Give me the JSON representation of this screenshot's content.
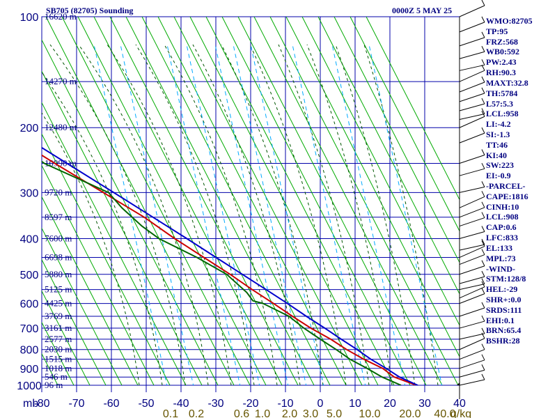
{
  "header": {
    "title": "SB705 (82705) Sounding",
    "time": "0000Z  5 MAY 25"
  },
  "indices": [
    "WMO:82705",
    "TP:95",
    "FRZ:568",
    "WB0:592",
    "PW:2.43",
    "RH:90.3",
    "MAXT:32.8",
    "TH:5784",
    "L57:5.3",
    "LCL:958",
    "LI:-4.2",
    "SI:-1.3",
    "TT:46",
    "KI:40",
    "SW:223",
    "EI:-0.9",
    "-PARCEL-",
    "CAPE:1816",
    "CINH:10",
    "LCL:908",
    "CAP:0.6",
    "LFC:833",
    "EL:133",
    "MPL:73",
    "-WIND-",
    "STM:128/8",
    "HEL:-29",
    "SHR+:0.0",
    "SRDS:111",
    "EHI:0.1",
    "BRN:65.4",
    "BSHR:28"
  ],
  "colors": {
    "axis": "#000080",
    "grid": "#0000aa",
    "dry_adiabat": "#00aa00",
    "moist_adiabat": "#005500",
    "mixing_ratio": "#00aaff",
    "temperature": "#cc0000",
    "dewpoint": "#006600",
    "parcel": "#0000cc",
    "mixing_label": "#665500"
  },
  "chart_data": {
    "type": "line",
    "title": "SB705 (82705) Sounding",
    "xlabel": "",
    "ylabel": "mb",
    "xlim": [
      -80,
      40
    ],
    "ylim": [
      1000,
      100
    ],
    "y_scale": "log",
    "pressure_ticks": [
      100,
      200,
      300,
      400,
      500,
      600,
      700,
      800,
      900,
      1000
    ],
    "temperature_ticks": [
      -80,
      -70,
      -60,
      -50,
      -40,
      -30,
      -20,
      -10,
      0,
      10,
      20,
      30,
      40
    ],
    "height_labels": [
      {
        "p": 100,
        "label": "16620 m"
      },
      {
        "p": 150,
        "label": "14270 m"
      },
      {
        "p": 200,
        "label": "12480 m"
      },
      {
        "p": 250,
        "label": "10990 m"
      },
      {
        "p": 300,
        "label": "9720 m"
      },
      {
        "p": 350,
        "label": "8597 m"
      },
      {
        "p": 400,
        "label": "7600 m"
      },
      {
        "p": 450,
        "label": "6698 m"
      },
      {
        "p": 500,
        "label": "5880 m"
      },
      {
        "p": 550,
        "label": "5125 m"
      },
      {
        "p": 600,
        "label": "4425 m"
      },
      {
        "p": 650,
        "label": "3769 m"
      },
      {
        "p": 700,
        "label": "3161 m"
      },
      {
        "p": 750,
        "label": "2577 m"
      },
      {
        "p": 800,
        "label": "2030 m"
      },
      {
        "p": 850,
        "label": "1515 m"
      },
      {
        "p": 900,
        "label": "1018 m"
      },
      {
        "p": 950,
        "label": "546 m"
      },
      {
        "p": 1000,
        "label": "96 m"
      }
    ],
    "mixing_ratio_labels": [
      "0.1",
      "0.2",
      "0.6",
      "1.0",
      "2.0",
      "3.0",
      "5.0",
      "10.0",
      "20.0",
      "40.0",
      "g/kg"
    ],
    "series": [
      {
        "role": "temperature",
        "points": [
          [
            1000,
            27.6
          ],
          [
            950,
            22.5
          ],
          [
            900,
            20.5
          ],
          [
            850,
            16.5
          ],
          [
            800,
            13.0
          ],
          [
            750,
            10.0
          ],
          [
            700,
            6.0
          ],
          [
            650,
            2.5
          ],
          [
            600,
            -1.0
          ],
          [
            550,
            -5.0
          ],
          [
            500,
            -9.0
          ],
          [
            450,
            -14.0
          ],
          [
            400,
            -19.5
          ],
          [
            350,
            -25.0
          ],
          [
            300,
            -33.0
          ],
          [
            250,
            -42.5
          ],
          [
            200,
            -53.5
          ],
          [
            150,
            -64.5
          ],
          [
            125,
            -71.0
          ],
          [
            100,
            -79.5
          ]
        ]
      },
      {
        "role": "dewpoint",
        "points": [
          [
            1000,
            23.2
          ],
          [
            950,
            19.0
          ],
          [
            900,
            16.0
          ],
          [
            850,
            12.5
          ],
          [
            800,
            10.0
          ],
          [
            750,
            7.0
          ],
          [
            700,
            4.0
          ],
          [
            650,
            1.5
          ],
          [
            600,
            -4.0
          ],
          [
            590,
            -6.5
          ],
          [
            560,
            -7.0
          ],
          [
            500,
            -10.0
          ],
          [
            450,
            -16.0
          ],
          [
            400,
            -24.0
          ],
          [
            370,
            -27.0
          ],
          [
            330,
            -30.0
          ],
          [
            300,
            -31.5
          ],
          [
            250,
            -45.5
          ],
          [
            220,
            -50.5
          ],
          [
            200,
            -59.0
          ],
          [
            190,
            -60.5
          ],
          [
            150,
            -71.0
          ],
          [
            130,
            -77.0
          ],
          [
            110,
            -80.0
          ]
        ]
      },
      {
        "role": "parcel",
        "points": [
          [
            1000,
            28.0
          ],
          [
            950,
            24.0
          ],
          [
            900,
            21.5
          ],
          [
            850,
            18.5
          ],
          [
            800,
            16.0
          ],
          [
            750,
            13.0
          ],
          [
            700,
            10.0
          ],
          [
            650,
            6.5
          ],
          [
            600,
            3.0
          ],
          [
            550,
            -1.0
          ],
          [
            500,
            -5.5
          ],
          [
            450,
            -10.5
          ],
          [
            400,
            -16.0
          ],
          [
            350,
            -22.5
          ],
          [
            300,
            -30.0
          ],
          [
            250,
            -39.0
          ],
          [
            200,
            -50.0
          ],
          [
            150,
            -63.0
          ],
          [
            120,
            -72.0
          ],
          [
            100,
            -80.0
          ]
        ]
      }
    ],
    "wind_barbs": true,
    "grid": true
  }
}
